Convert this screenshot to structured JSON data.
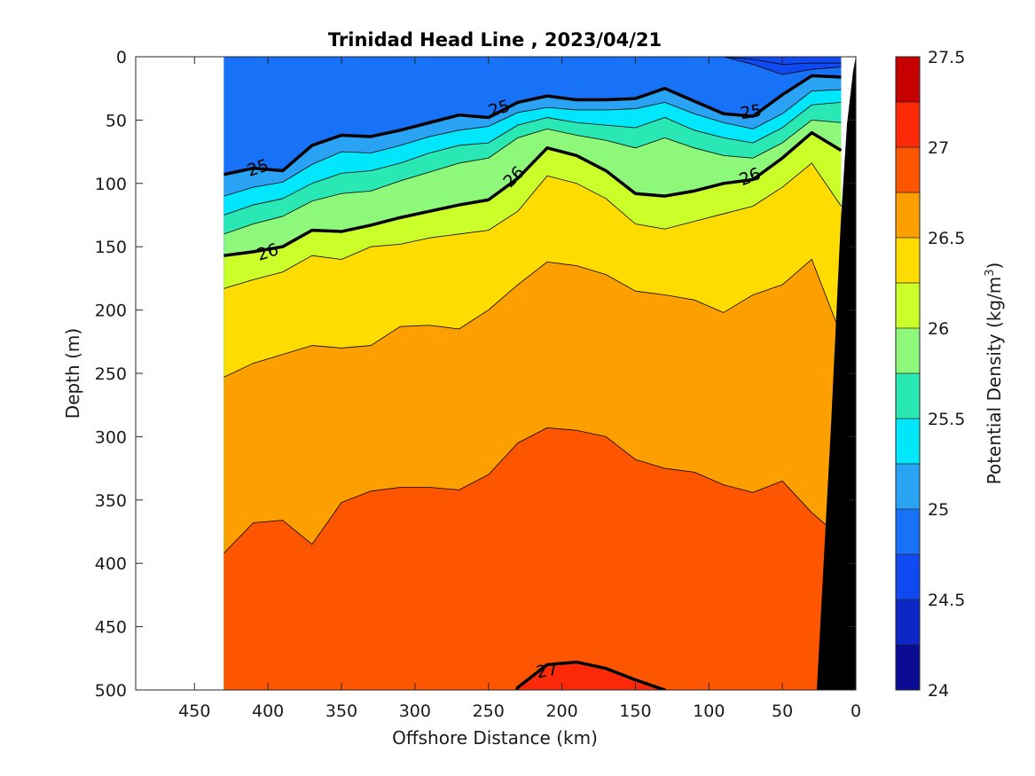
{
  "chart_data": {
    "type": "contour",
    "title": "Trinidad Head Line , 2023/04/21",
    "xlabel": "Offshore Distance (km)",
    "ylabel": "Depth (m)",
    "xlim": [
      490,
      0
    ],
    "ylim": [
      0,
      500
    ],
    "xticks": [
      "450",
      "400",
      "350",
      "300",
      "250",
      "200",
      "150",
      "100",
      "50",
      "0"
    ],
    "yticks": [
      "0",
      "50",
      "100",
      "150",
      "200",
      "250",
      "300",
      "350",
      "400",
      "450",
      "500"
    ],
    "colorbar": {
      "label": "Potential Density (kg/m",
      "label_sup": "3",
      "label_end": ")",
      "range": [
        24,
        27.5
      ],
      "ticks": [
        "24",
        "24.5",
        "25",
        "25.5",
        "26",
        "26.5",
        "27",
        "27.5"
      ],
      "colors": [
        "#0b0a92",
        "#0d26c6",
        "#0f49f2",
        "#1872f8",
        "#2aa3f5",
        "#00e6fb",
        "#29e8b3",
        "#8ef87b",
        "#cbff2a",
        "#ffdc00",
        "#fe9f00",
        "#fe5500",
        "#fd2a0a",
        "#c60000"
      ]
    },
    "contour_labels": [
      "25",
      "25",
      "25",
      "26",
      "26",
      "26",
      "27"
    ],
    "data_coverage": {
      "x_max_km": 430,
      "x_min_km": 10
    },
    "x_km": [
      430,
      410,
      390,
      370,
      350,
      330,
      310,
      290,
      270,
      250,
      230,
      210,
      190,
      170,
      150,
      130,
      110,
      90,
      70,
      50,
      30,
      10
    ],
    "isopycnals": [
      {
        "level": 24.5,
        "depth_m": [
          0,
          0,
          0,
          0,
          0,
          0,
          0,
          0,
          0,
          0,
          0,
          0,
          0,
          0,
          0,
          0,
          0,
          0,
          2,
          6,
          5,
          5
        ]
      },
      {
        "level": 24.75,
        "depth_m": [
          0,
          0,
          0,
          0,
          0,
          0,
          0,
          0,
          0,
          0,
          0,
          0,
          0,
          0,
          0,
          0,
          0,
          0,
          6,
          14,
          10,
          8
        ]
      },
      {
        "level": 25.0,
        "depth_m": [
          93,
          88,
          90,
          70,
          62,
          63,
          58,
          52,
          46,
          48,
          36,
          31,
          34,
          34,
          33,
          25,
          35,
          45,
          47,
          30,
          15,
          16
        ]
      },
      {
        "level": 25.25,
        "depth_m": [
          110,
          103,
          99,
          85,
          75,
          76,
          70,
          63,
          58,
          55,
          44,
          40,
          42,
          42,
          41,
          36,
          45,
          52,
          57,
          45,
          27,
          26
        ]
      },
      {
        "level": 25.5,
        "depth_m": [
          125,
          117,
          112,
          100,
          92,
          90,
          84,
          76,
          70,
          68,
          54,
          48,
          52,
          54,
          56,
          48,
          58,
          64,
          68,
          56,
          38,
          36
        ]
      },
      {
        "level": 25.75,
        "depth_m": [
          140,
          132,
          126,
          114,
          108,
          106,
          98,
          91,
          84,
          80,
          64,
          57,
          62,
          66,
          72,
          64,
          72,
          78,
          80,
          68,
          50,
          52
        ]
      },
      {
        "level": 26.0,
        "depth_m": [
          157,
          154,
          150,
          137,
          138,
          133,
          127,
          122,
          117,
          113,
          96,
          72,
          78,
          90,
          108,
          110,
          106,
          100,
          97,
          80,
          60,
          74
        ]
      },
      {
        "level": 26.25,
        "depth_m": [
          183,
          176,
          170,
          157,
          160,
          150,
          148,
          143,
          140,
          137,
          122,
          94,
          100,
          112,
          132,
          136,
          130,
          124,
          118,
          103,
          84,
          118
        ]
      },
      {
        "level": 26.5,
        "depth_m": [
          253,
          242,
          235,
          228,
          230,
          228,
          213,
          212,
          215,
          200,
          180,
          162,
          165,
          172,
          185,
          188,
          192,
          202,
          188,
          180,
          160,
          220
        ]
      },
      {
        "level": 26.75,
        "depth_m": [
          392,
          368,
          366,
          385,
          352,
          343,
          340,
          340,
          342,
          330,
          305,
          293,
          295,
          300,
          318,
          325,
          328,
          338,
          344,
          335,
          360,
          380
        ]
      },
      {
        "level": 27.0,
        "depth_m": [
          600,
          600,
          600,
          600,
          600,
          600,
          600,
          600,
          600,
          600,
          498,
          480,
          478,
          483,
          492,
          500,
          600,
          600,
          600,
          600,
          600,
          600
        ]
      }
    ]
  }
}
